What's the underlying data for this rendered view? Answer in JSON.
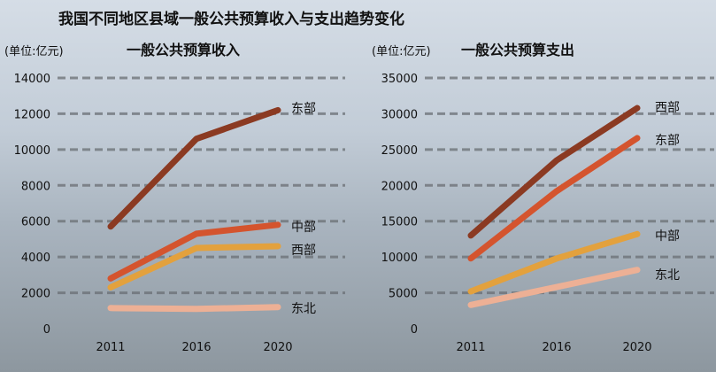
{
  "title": "我国不同地区县域一般公共预算收入与支出趋势变化",
  "chart_data": [
    {
      "type": "line",
      "title": "一般公共预算收入",
      "unit": "(单位:亿元)",
      "x": [
        "2011",
        "2016",
        "2020"
      ],
      "ylim": [
        0,
        14000
      ],
      "yticks": [
        "0",
        "2000",
        "4000",
        "6000",
        "8000",
        "10000",
        "12000",
        "14000"
      ],
      "series": [
        {
          "name": "东部",
          "values": [
            5700,
            10600,
            12200
          ],
          "color": "#8b3a22"
        },
        {
          "name": "中部",
          "values": [
            2800,
            5300,
            5800
          ],
          "color": "#d4542e"
        },
        {
          "name": "西部",
          "values": [
            2300,
            4500,
            4600
          ],
          "color": "#e3a13d"
        },
        {
          "name": "东北",
          "values": [
            1150,
            1100,
            1200
          ],
          "color": "#edb095"
        }
      ]
    },
    {
      "type": "line",
      "title": "一般公共预算支出",
      "unit": "(单位:亿元)",
      "x": [
        "2011",
        "2016",
        "2020"
      ],
      "ylim": [
        0,
        35000
      ],
      "yticks": [
        "0",
        "5000",
        "10000",
        "15000",
        "20000",
        "25000",
        "30000",
        "35000"
      ],
      "series": [
        {
          "name": "西部",
          "values": [
            13000,
            23500,
            30800
          ],
          "color": "#8b3a22"
        },
        {
          "name": "东部",
          "values": [
            9800,
            19200,
            26600
          ],
          "color": "#d4542e"
        },
        {
          "name": "中部",
          "values": [
            5200,
            9800,
            13200
          ],
          "color": "#e3a13d"
        },
        {
          "name": "东北",
          "values": [
            3300,
            5800,
            8200
          ],
          "color": "#edb095"
        }
      ]
    }
  ]
}
